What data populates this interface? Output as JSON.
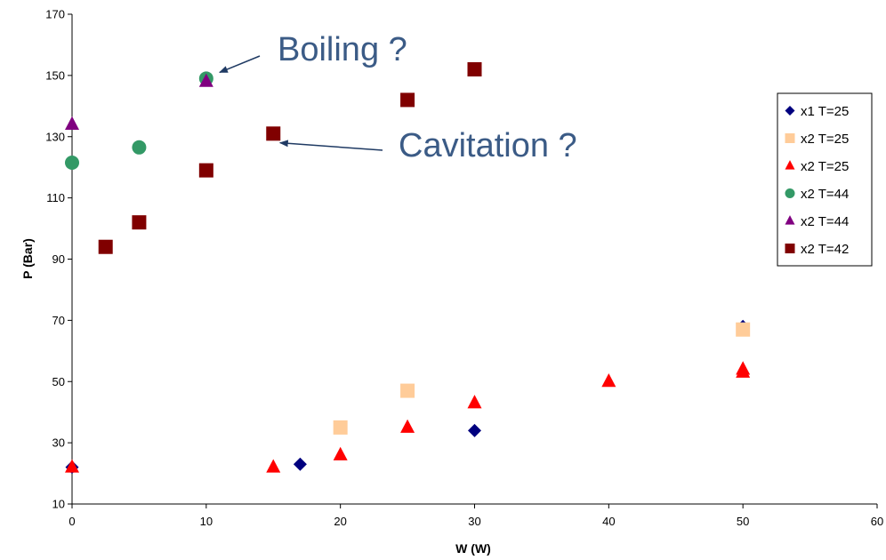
{
  "chart_data": {
    "type": "scatter",
    "title": "",
    "xlabel": "W (W)",
    "ylabel": "P (Bar)",
    "xlim": [
      0,
      60
    ],
    "ylim": [
      10,
      170
    ],
    "xticks": [
      0,
      10,
      20,
      30,
      40,
      50,
      60
    ],
    "yticks": [
      10,
      30,
      50,
      70,
      90,
      110,
      130,
      150,
      170
    ],
    "grid": false,
    "legend_position": "right",
    "series": [
      {
        "name": "x1 T=25",
        "marker": "diamond",
        "color": "#00007f",
        "points": [
          [
            0,
            22
          ],
          [
            17,
            23
          ],
          [
            30,
            34
          ],
          [
            50,
            67
          ],
          [
            50,
            68
          ]
        ]
      },
      {
        "name": "x2 T=25",
        "marker": "square",
        "color": "#ffcc99",
        "points": [
          [
            20,
            35
          ],
          [
            25,
            47
          ],
          [
            50,
            67
          ]
        ]
      },
      {
        "name": "x2 T=25",
        "marker": "triangle",
        "color": "#ff0000",
        "points": [
          [
            0,
            22
          ],
          [
            15,
            22
          ],
          [
            20,
            26
          ],
          [
            25,
            35
          ],
          [
            30,
            43
          ],
          [
            40,
            50
          ],
          [
            50,
            53
          ],
          [
            50,
            54
          ]
        ]
      },
      {
        "name": "x2 T=44",
        "marker": "circle",
        "color": "#339966",
        "points": [
          [
            0,
            121.5
          ],
          [
            5,
            126.5
          ],
          [
            10,
            149
          ]
        ]
      },
      {
        "name": "x2 T=44",
        "marker": "triangle",
        "color": "#800080",
        "points": [
          [
            0,
            134
          ],
          [
            10,
            148
          ]
        ]
      },
      {
        "name": "x2 T=42",
        "marker": "square",
        "color": "#800000",
        "points": [
          [
            2.5,
            94
          ],
          [
            5,
            102
          ],
          [
            10,
            119
          ],
          [
            15,
            131
          ],
          [
            25,
            142
          ],
          [
            30,
            152
          ]
        ]
      }
    ],
    "annotations": [
      {
        "text": "Boiling ?",
        "arrow_to": [
          11,
          151
        ]
      },
      {
        "text": "Cavitation ?",
        "arrow_to": [
          15.5,
          128
        ]
      }
    ]
  }
}
